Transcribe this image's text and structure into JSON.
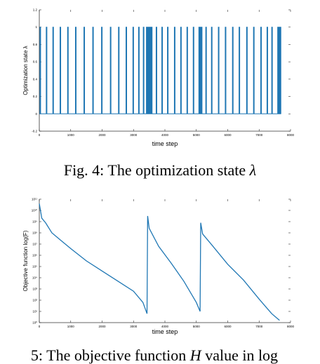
{
  "chart_data": [
    {
      "type": "line",
      "subplot": "top",
      "title": "",
      "xlabel": "time step",
      "ylabel": "Optimization state λ",
      "xlim": [
        0,
        8000
      ],
      "ylim": [
        -0.2,
        1.2
      ],
      "x_ticks": [
        "0",
        "1000",
        "2000",
        "3000",
        "4000",
        "5000",
        "6000",
        "7000",
        "8000"
      ],
      "y_ticks": [
        "-0.2",
        "0",
        "0.2",
        "0.4",
        "0.6",
        "0.8",
        "1",
        "1.2"
      ],
      "series": [
        {
          "name": "",
          "color": "#1f77b4",
          "spike_x": [
            20,
            220,
            430,
            660,
            900,
            1150,
            1420,
            1700,
            1980,
            2260,
            2520,
            2760,
            2980,
            3160,
            3310,
            3410,
            3430,
            3450,
            3470,
            3490,
            3510,
            3530,
            3550,
            3570,
            3720,
            3900,
            4080,
            4300,
            4500,
            4700,
            4900,
            5080,
            5100,
            5120,
            5140,
            5160,
            5300,
            5480,
            5700,
            5920,
            6150,
            6360,
            6600,
            6820,
            7050,
            7250,
            7400,
            7590,
            7610,
            7630,
            7650,
            7670
          ],
          "low": 0,
          "high": 1
        }
      ]
    },
    {
      "type": "line",
      "subplot": "bottom",
      "title": "",
      "xlabel": "time step",
      "ylabel": "Objective function log(F)",
      "xlim": [
        0,
        8000
      ],
      "ylim": [
        0,
        11
      ],
      "y_scale": "log",
      "x_ticks": [
        "0",
        "1000",
        "2000",
        "3000",
        "4000",
        "5000",
        "6000",
        "7000",
        "8000"
      ],
      "y_ticks": [
        "10⁰",
        "10¹",
        "10²",
        "10³",
        "10⁴",
        "10⁵",
        "10⁶",
        "10⁷",
        "10⁸",
        "10⁹",
        "10¹⁰",
        "10¹¹"
      ],
      "series": [
        {
          "name": "",
          "color": "#1f77b4",
          "x": [
            0,
            80,
            200,
            400,
            700,
            1000,
            1500,
            2000,
            2500,
            3000,
            3300,
            3430,
            3450,
            3500,
            3800,
            4200,
            4600,
            5000,
            5120,
            5140,
            5200,
            5500,
            6000,
            6500,
            7000,
            7400,
            7650
          ],
          "y": [
            10.6,
            9.3,
            8.9,
            8.0,
            7.3,
            6.6,
            5.5,
            4.6,
            3.7,
            2.8,
            1.8,
            0.8,
            9.5,
            8.4,
            6.8,
            5.3,
            3.7,
            1.8,
            1.0,
            8.9,
            7.9,
            6.9,
            5.2,
            3.8,
            2.1,
            0.8,
            0.2
          ]
        }
      ]
    }
  ],
  "captions": {
    "fig4": {
      "prefix": "Fig. 4: The optimization state ",
      "symbol": "λ"
    },
    "fig5": {
      "prefix": "5: The objective function ",
      "symbol": "H",
      "suffix": " value in log"
    }
  }
}
